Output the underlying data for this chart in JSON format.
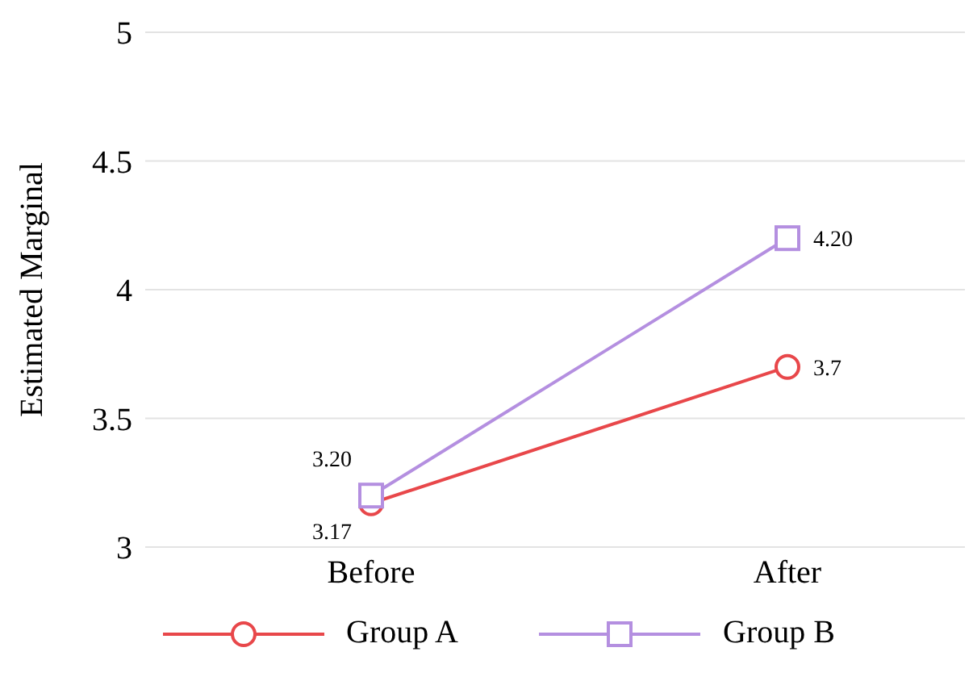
{
  "chart_data": {
    "type": "line",
    "ylabel": "Estimated Marginal",
    "categories": [
      "Before",
      "After"
    ],
    "series": [
      {
        "name": "Group A",
        "color": "#e8474a",
        "values": [
          3.17,
          3.7
        ],
        "value_labels": [
          "3.17",
          "3.7"
        ],
        "marker": "circle"
      },
      {
        "name": "Group B",
        "color": "#b48fe0",
        "values": [
          3.2,
          4.2
        ],
        "value_labels": [
          "3.20",
          "4.20"
        ],
        "marker": "square"
      }
    ],
    "ylim": [
      3,
      5
    ],
    "yticks": [
      3,
      3.5,
      4,
      4.5,
      5
    ],
    "grid": "y",
    "legend": "bottom",
    "line_style": "solid"
  }
}
